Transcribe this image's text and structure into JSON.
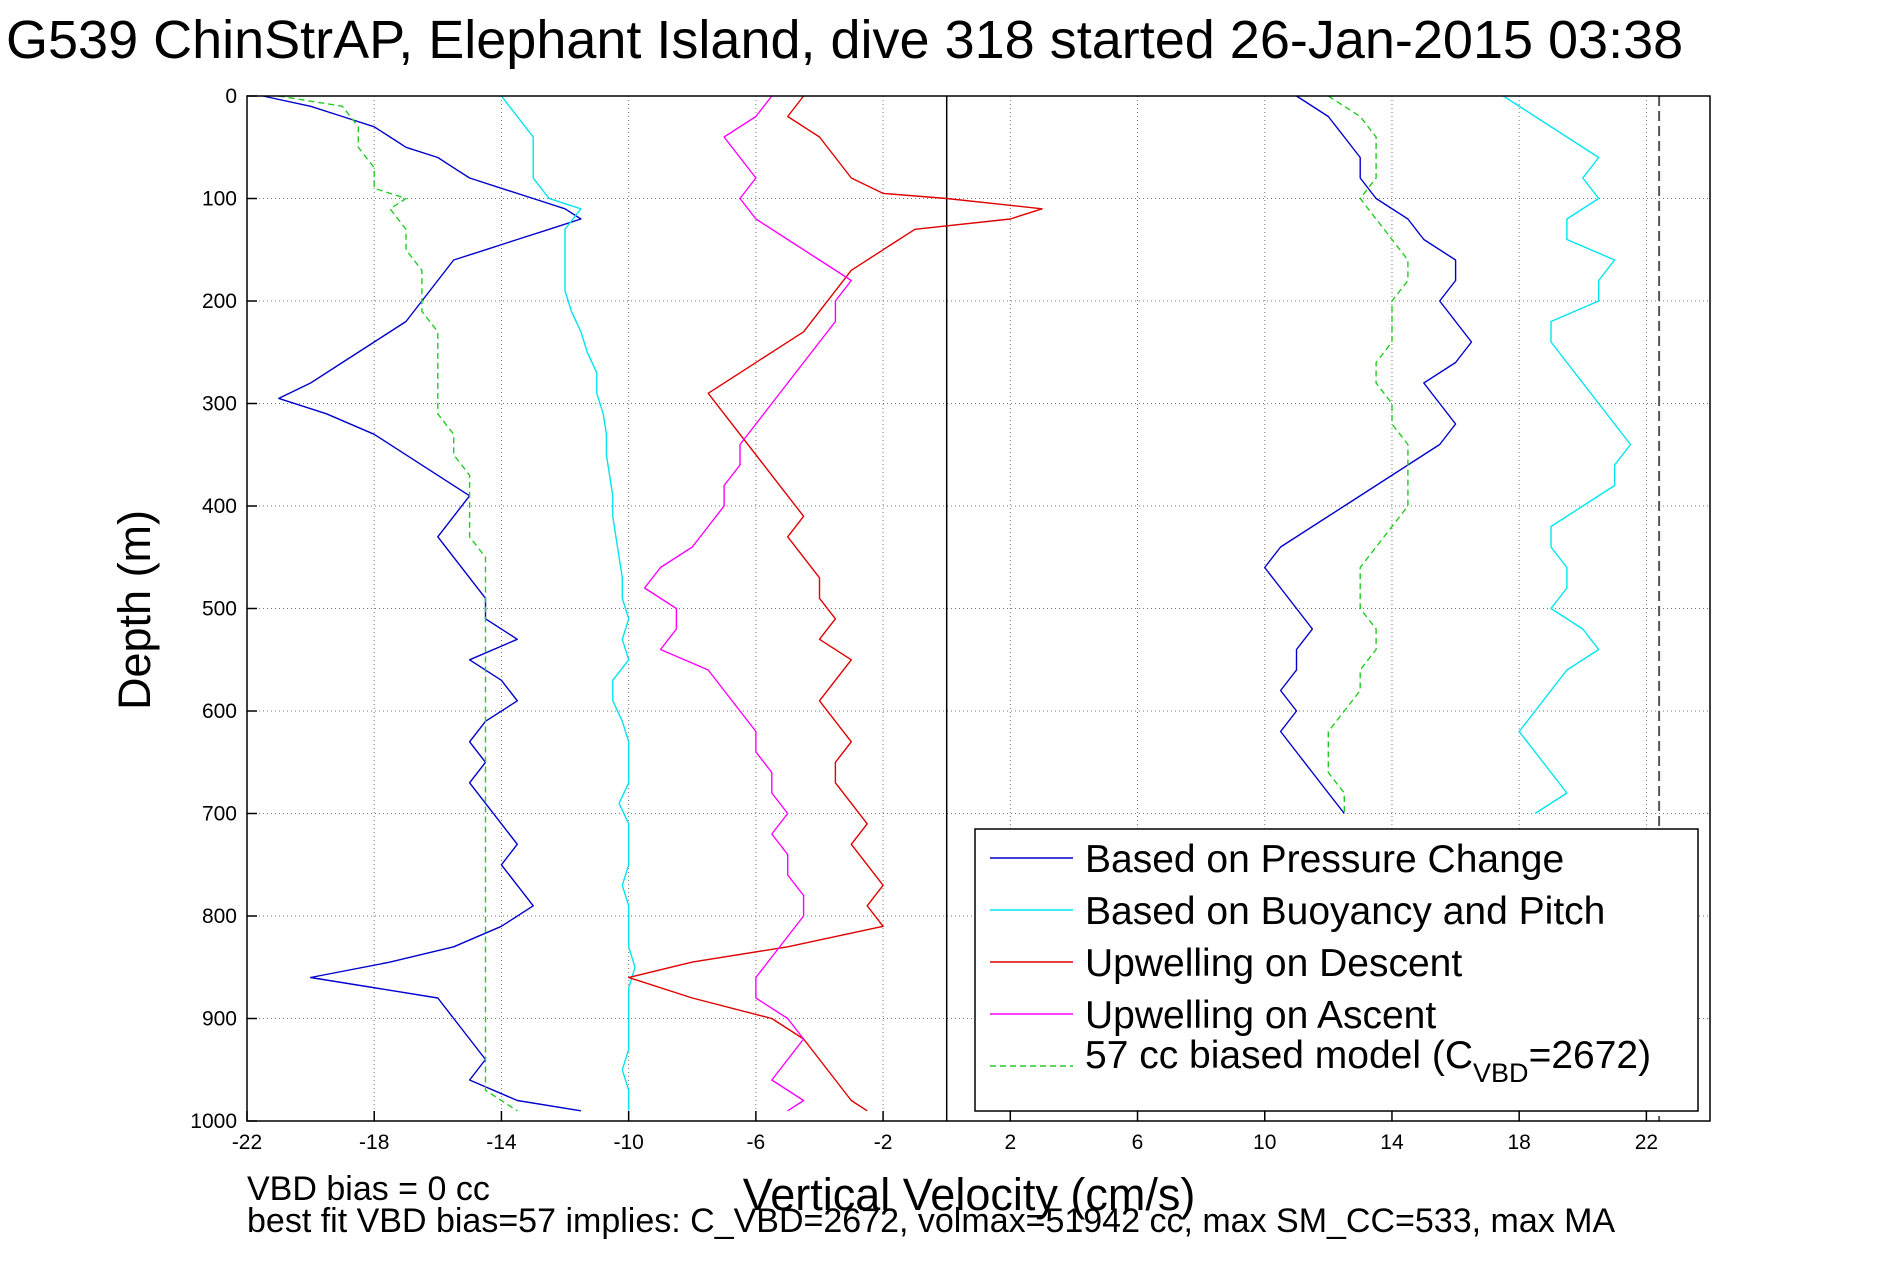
{
  "chart_data": {
    "type": "line",
    "title": "G539 ChinStrAP, Elephant Island, dive 318 started 26-Jan-2015 03:38",
    "xlabel": "Vertical Velocity (cm/s)",
    "ylabel": "Depth (m)",
    "xlim": [
      -22,
      24
    ],
    "ylim": [
      1000,
      0
    ],
    "y_reversed": true,
    "grid": true,
    "grid_style": "dotted",
    "x_ticks": [
      -22,
      -18,
      -14,
      -10,
      -6,
      -2,
      2,
      6,
      10,
      14,
      18,
      22
    ],
    "y_ticks": [
      0,
      100,
      200,
      300,
      400,
      500,
      600,
      700,
      800,
      900,
      1000
    ],
    "reference_lines": {
      "zero_velocity": 0,
      "zero_velocity_color": "#000000",
      "max_velocity_dashed": 22.4,
      "max_velocity_color": "#555555"
    },
    "legend_position": "bottom-right",
    "legend": [
      {
        "name": "Based on Pressure Change",
        "color": "#0000cc",
        "style": "solid"
      },
      {
        "name": "Based on Buoyancy and Pitch",
        "color": "#00e5ee",
        "style": "solid"
      },
      {
        "name": "Upwelling on Descent",
        "color": "#e00000",
        "style": "solid"
      },
      {
        "name": "Upwelling on Ascent",
        "color": "#ff00ff",
        "style": "solid"
      },
      {
        "name_prefix": "57 cc biased model (C",
        "name_sub": "VBD",
        "name_suffix": "=2672)",
        "color": "#22cc22",
        "style": "dashed"
      }
    ],
    "series": [
      {
        "name": "Based on Pressure Change (descent)",
        "color": "#0000cc",
        "depth": [
          0,
          10,
          20,
          30,
          40,
          50,
          60,
          70,
          80,
          90,
          100,
          110,
          120,
          130,
          140,
          150,
          160,
          180,
          200,
          220,
          240,
          260,
          280,
          295,
          310,
          330,
          350,
          370,
          390,
          410,
          430,
          450,
          470,
          490,
          510,
          530,
          550,
          570,
          590,
          610,
          630,
          650,
          670,
          690,
          710,
          730,
          750,
          770,
          790,
          810,
          830,
          845,
          860,
          880,
          900,
          920,
          940,
          960,
          980,
          990
        ],
        "velocity": [
          -21.5,
          -20.0,
          -19.0,
          -18.0,
          -17.5,
          -17.0,
          -16.0,
          -15.5,
          -15.0,
          -14.0,
          -13.0,
          -12.0,
          -11.5,
          -12.5,
          -13.5,
          -14.5,
          -15.5,
          -16.0,
          -16.5,
          -17.0,
          -18.0,
          -19.0,
          -20.0,
          -21.0,
          -19.5,
          -18.0,
          -17.0,
          -16.0,
          -15.0,
          -15.5,
          -16.0,
          -15.5,
          -15.0,
          -14.5,
          -14.5,
          -13.5,
          -15.0,
          -14.0,
          -13.5,
          -14.5,
          -15.0,
          -14.5,
          -15.0,
          -14.5,
          -14.0,
          -13.5,
          -14.0,
          -13.5,
          -13.0,
          -14.0,
          -15.5,
          -17.5,
          -20.0,
          -16.0,
          -15.5,
          -15.0,
          -14.5,
          -15.0,
          -13.5,
          -11.5
        ]
      },
      {
        "name": "Based on Pressure Change (ascent)",
        "color": "#0000cc",
        "depth": [
          0,
          20,
          40,
          60,
          80,
          100,
          120,
          140,
          160,
          180,
          200,
          220,
          240,
          260,
          280,
          300,
          320,
          340,
          360,
          380,
          400,
          420,
          440,
          460,
          480,
          500,
          520,
          540,
          560,
          580,
          600,
          620,
          640,
          660,
          680,
          700
        ],
        "velocity": [
          11.0,
          12.0,
          12.5,
          13.0,
          13.0,
          13.5,
          14.5,
          15.0,
          16.0,
          16.0,
          15.5,
          16.0,
          16.5,
          16.0,
          15.0,
          15.5,
          16.0,
          15.5,
          14.5,
          13.5,
          12.5,
          11.5,
          10.5,
          10.0,
          10.5,
          11.0,
          11.5,
          11.0,
          11.0,
          10.5,
          11.0,
          10.5,
          11.0,
          11.5,
          12.0,
          12.5
        ]
      },
      {
        "name": "Based on Buoyancy and Pitch (descent)",
        "color": "#00e5ee",
        "depth": [
          0,
          20,
          40,
          60,
          80,
          100,
          110,
          130,
          150,
          170,
          190,
          210,
          230,
          250,
          270,
          290,
          310,
          330,
          350,
          370,
          390,
          410,
          430,
          450,
          470,
          490,
          510,
          530,
          550,
          570,
          590,
          610,
          630,
          650,
          670,
          690,
          710,
          730,
          750,
          770,
          790,
          810,
          830,
          850,
          870,
          890,
          910,
          930,
          950,
          970,
          990
        ],
        "velocity": [
          -14.0,
          -13.5,
          -13.0,
          -13.0,
          -13.0,
          -12.5,
          -11.5,
          -12.0,
          -12.0,
          -12.0,
          -12.0,
          -11.8,
          -11.5,
          -11.3,
          -11.0,
          -11.0,
          -10.8,
          -10.7,
          -10.7,
          -10.6,
          -10.5,
          -10.5,
          -10.4,
          -10.3,
          -10.2,
          -10.2,
          -10.0,
          -10.2,
          -10.0,
          -10.5,
          -10.5,
          -10.2,
          -10.0,
          -10.0,
          -10.0,
          -10.3,
          -10.0,
          -10.0,
          -10.0,
          -10.2,
          -10.0,
          -10.0,
          -10.0,
          -9.8,
          -10.0,
          -10.0,
          -10.0,
          -10.0,
          -10.2,
          -10.0,
          -10.0
        ]
      },
      {
        "name": "Based on Buoyancy and Pitch (ascent)",
        "color": "#00e5ee",
        "depth": [
          0,
          20,
          40,
          60,
          80,
          100,
          120,
          140,
          160,
          180,
          200,
          220,
          240,
          260,
          280,
          300,
          320,
          340,
          360,
          380,
          400,
          420,
          440,
          460,
          480,
          500,
          520,
          540,
          560,
          580,
          600,
          620,
          640,
          660,
          680,
          700
        ],
        "velocity": [
          17.5,
          18.5,
          19.5,
          20.5,
          20.0,
          20.5,
          19.5,
          19.5,
          21.0,
          20.5,
          20.5,
          19.0,
          19.0,
          19.5,
          20.0,
          20.5,
          21.0,
          21.5,
          21.0,
          21.0,
          20.0,
          19.0,
          19.0,
          19.5,
          19.5,
          19.0,
          20.0,
          20.5,
          19.5,
          19.0,
          18.5,
          18.0,
          18.5,
          19.0,
          19.5,
          18.5
        ]
      },
      {
        "name": "Upwelling on Descent",
        "color": "#e00000",
        "depth": [
          0,
          20,
          40,
          60,
          80,
          95,
          100,
          110,
          120,
          130,
          150,
          170,
          190,
          210,
          230,
          250,
          270,
          290,
          310,
          330,
          350,
          370,
          390,
          410,
          430,
          450,
          470,
          490,
          510,
          530,
          550,
          570,
          590,
          610,
          630,
          650,
          670,
          690,
          710,
          730,
          750,
          770,
          790,
          810,
          830,
          845,
          860,
          880,
          900,
          920,
          940,
          960,
          980,
          990
        ],
        "velocity": [
          -4.5,
          -5.0,
          -4.0,
          -3.5,
          -3.0,
          -2.0,
          0.0,
          3.0,
          2.0,
          -1.0,
          -2.0,
          -3.0,
          -3.5,
          -4.0,
          -4.5,
          -5.5,
          -6.5,
          -7.5,
          -7.0,
          -6.5,
          -6.0,
          -5.5,
          -5.0,
          -4.5,
          -5.0,
          -4.5,
          -4.0,
          -4.0,
          -3.5,
          -4.0,
          -3.0,
          -3.5,
          -4.0,
          -3.5,
          -3.0,
          -3.5,
          -3.5,
          -3.0,
          -2.5,
          -3.0,
          -2.5,
          -2.0,
          -2.5,
          -2.0,
          -5.0,
          -8.0,
          -10.0,
          -8.0,
          -5.5,
          -4.5,
          -4.0,
          -3.5,
          -3.0,
          -2.5
        ]
      },
      {
        "name": "Upwelling on Ascent",
        "color": "#ff00ff",
        "depth": [
          0,
          20,
          40,
          60,
          80,
          100,
          120,
          140,
          160,
          180,
          200,
          220,
          240,
          260,
          280,
          300,
          320,
          340,
          360,
          380,
          400,
          420,
          440,
          460,
          480,
          500,
          520,
          540,
          560,
          580,
          600,
          620,
          640,
          660,
          680,
          700,
          720,
          740,
          760,
          780,
          800,
          820,
          840,
          860,
          880,
          900,
          920,
          940,
          960,
          980,
          990
        ],
        "velocity": [
          -5.5,
          -6.0,
          -7.0,
          -6.5,
          -6.0,
          -6.5,
          -6.0,
          -5.0,
          -4.0,
          -3.0,
          -3.5,
          -3.5,
          -4.0,
          -4.5,
          -5.0,
          -5.5,
          -6.0,
          -6.5,
          -6.5,
          -7.0,
          -7.0,
          -7.5,
          -8.0,
          -9.0,
          -9.5,
          -8.5,
          -8.5,
          -9.0,
          -7.5,
          -7.0,
          -6.5,
          -6.0,
          -6.0,
          -5.5,
          -5.5,
          -5.0,
          -5.5,
          -5.0,
          -5.0,
          -4.5,
          -4.5,
          -5.0,
          -5.5,
          -6.0,
          -6.0,
          -5.0,
          -4.5,
          -5.0,
          -5.5,
          -4.5,
          -5.0
        ]
      },
      {
        "name": "57 cc biased model (descent)",
        "color": "#22cc22",
        "dashed": true,
        "depth": [
          0,
          10,
          30,
          50,
          70,
          90,
          100,
          110,
          130,
          150,
          170,
          190,
          210,
          230,
          250,
          270,
          290,
          310,
          330,
          350,
          370,
          390,
          410,
          430,
          450,
          470,
          490,
          510,
          530,
          550,
          570,
          590,
          610,
          630,
          650,
          670,
          690,
          710,
          730,
          750,
          770,
          790,
          810,
          830,
          850,
          870,
          890,
          910,
          930,
          950,
          970,
          990
        ],
        "velocity": [
          -21.0,
          -19.0,
          -18.5,
          -18.5,
          -18.0,
          -18.0,
          -17.0,
          -17.5,
          -17.0,
          -17.0,
          -16.5,
          -16.5,
          -16.5,
          -16.0,
          -16.0,
          -16.0,
          -16.0,
          -16.0,
          -15.5,
          -15.5,
          -15.0,
          -15.0,
          -15.0,
          -15.0,
          -14.5,
          -14.5,
          -14.5,
          -14.5,
          -14.5,
          -14.5,
          -14.5,
          -14.5,
          -14.5,
          -14.5,
          -14.5,
          -14.5,
          -14.5,
          -14.5,
          -14.5,
          -14.5,
          -14.5,
          -14.5,
          -14.5,
          -14.5,
          -14.5,
          -14.5,
          -14.5,
          -14.5,
          -14.5,
          -14.5,
          -14.5,
          -13.5
        ]
      },
      {
        "name": "57 cc biased model (ascent)",
        "color": "#22cc22",
        "dashed": true,
        "depth": [
          0,
          20,
          40,
          60,
          80,
          100,
          120,
          140,
          160,
          180,
          200,
          220,
          240,
          260,
          280,
          300,
          320,
          340,
          360,
          380,
          400,
          420,
          440,
          460,
          480,
          500,
          520,
          540,
          560,
          580,
          600,
          620,
          640,
          660,
          680,
          700
        ],
        "velocity": [
          12.0,
          13.0,
          13.5,
          13.5,
          13.5,
          13.0,
          13.5,
          14.0,
          14.5,
          14.5,
          14.0,
          14.0,
          14.0,
          13.5,
          13.5,
          14.0,
          14.0,
          14.5,
          14.5,
          14.5,
          14.5,
          14.0,
          13.5,
          13.0,
          13.0,
          13.0,
          13.5,
          13.5,
          13.0,
          13.0,
          12.5,
          12.0,
          12.0,
          12.0,
          12.5,
          12.5
        ]
      }
    ],
    "footer_lines": [
      "VBD bias = 0 cc",
      "best fit VBD bias=57 implies: C_VBD=2672, volmax=51942 cc, max SM_CC=533, max MA"
    ]
  }
}
